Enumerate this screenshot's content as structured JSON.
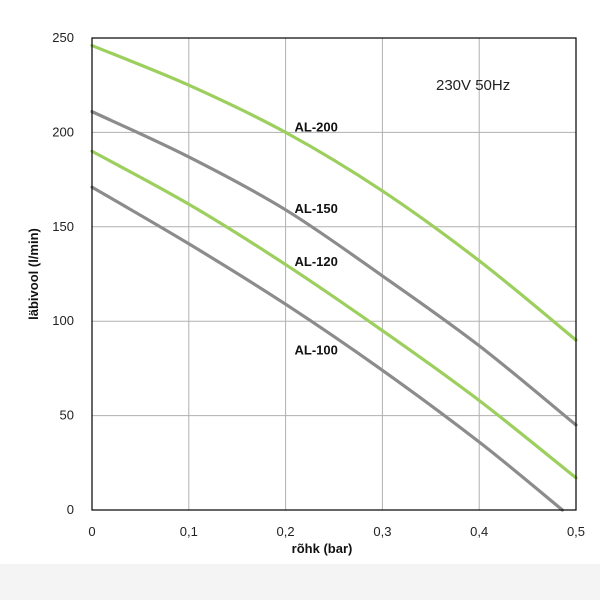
{
  "chart_data": {
    "type": "line",
    "title": "",
    "xlabel": "rõhk (bar)",
    "ylabel": "läbivool (l/min)",
    "xlim": [
      0,
      0.5
    ],
    "ylim": [
      0,
      250
    ],
    "x_ticks": [
      "0",
      "0,1",
      "0,2",
      "0,3",
      "0,4",
      "0,5"
    ],
    "y_ticks": [
      "0",
      "50",
      "100",
      "150",
      "200",
      "250"
    ],
    "grid": true,
    "annotation": "230V  50Hz",
    "series": [
      {
        "name": "AL-200",
        "color": "#9ccf5e",
        "x": [
          0,
          0.1,
          0.2,
          0.3,
          0.4,
          0.5
        ],
        "y": [
          246,
          225,
          200,
          169,
          132,
          90
        ]
      },
      {
        "name": "AL-150",
        "color": "#8c8c8c",
        "x": [
          0,
          0.1,
          0.2,
          0.3,
          0.4,
          0.5
        ],
        "y": [
          211,
          187,
          159,
          124,
          87,
          45
        ]
      },
      {
        "name": "AL-120",
        "color": "#9ccf5e",
        "x": [
          0,
          0.1,
          0.2,
          0.3,
          0.4,
          0.5
        ],
        "y": [
          190,
          162,
          130,
          95,
          58,
          17
        ]
      },
      {
        "name": "AL-100",
        "color": "#8c8c8c",
        "x": [
          0,
          0.1,
          0.2,
          0.3,
          0.4,
          0.486
        ],
        "y": [
          171,
          141,
          109,
          74,
          36,
          0
        ]
      }
    ]
  }
}
